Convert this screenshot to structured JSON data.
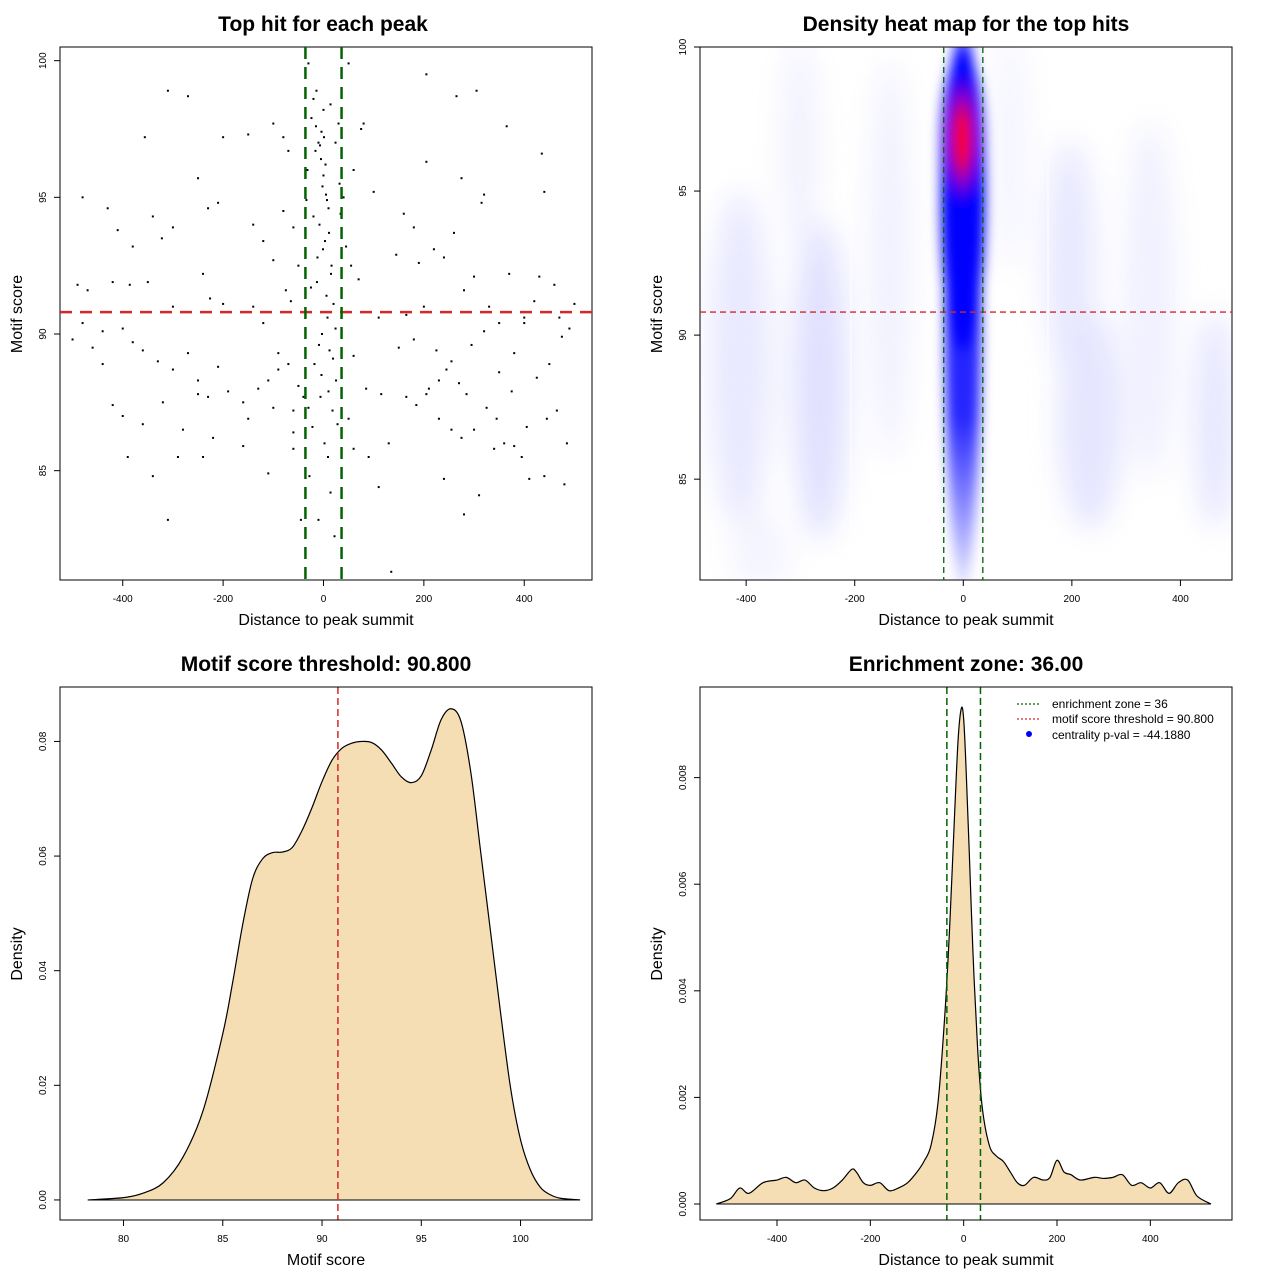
{
  "chart_data": [
    {
      "id": "scatter",
      "type": "scatter",
      "title": "Top hit for each peak",
      "xlabel": "Distance to peak summit",
      "ylabel": "Motif score",
      "xlim": [
        -525,
        535
      ],
      "ylim": [
        81,
        100.5
      ],
      "xticks": [
        -400,
        -200,
        0,
        200,
        400
      ],
      "yticks": [
        85,
        90,
        95,
        100
      ],
      "threshold_score": 90.8,
      "enrichment_zone": [
        -36,
        36
      ],
      "point_color": "#000000",
      "threshold_color": "#d62728",
      "zone_color": "#006400",
      "points": [
        [
          -310,
          98.9
        ],
        [
          -270,
          98.7
        ],
        [
          -356,
          97.2
        ],
        [
          -200,
          97.2
        ],
        [
          -150,
          97.3
        ],
        [
          -100,
          97.7
        ],
        [
          -80,
          97.2
        ],
        [
          -70,
          96.7
        ],
        [
          -480,
          95.0
        ],
        [
          -430,
          94.6
        ],
        [
          -410,
          93.8
        ],
        [
          -380,
          93.2
        ],
        [
          -340,
          94.3
        ],
        [
          -322,
          93.5
        ],
        [
          -300,
          93.9
        ],
        [
          -250,
          95.7
        ],
        [
          -230,
          94.6
        ],
        [
          -210,
          94.8
        ],
        [
          -120,
          93.4
        ],
        [
          -100,
          92.7
        ],
        [
          -80,
          94.5
        ],
        [
          -60,
          93.9
        ],
        [
          -50,
          92.5
        ],
        [
          -140,
          94.0
        ],
        [
          -490,
          91.8
        ],
        [
          -470,
          91.6
        ],
        [
          -420,
          91.9
        ],
        [
          -386,
          91.8
        ],
        [
          -350,
          91.9
        ],
        [
          -300,
          91.0
        ],
        [
          -240,
          92.2
        ],
        [
          -226,
          91.3
        ],
        [
          -200,
          91.1
        ],
        [
          -140,
          91.0
        ],
        [
          -120,
          90.4
        ],
        [
          -75,
          91.6
        ],
        [
          -65,
          91.2
        ],
        [
          -500,
          89.8
        ],
        [
          -460,
          89.5
        ],
        [
          -440,
          88.9
        ],
        [
          -400,
          90.2
        ],
        [
          -380,
          89.7
        ],
        [
          -360,
          89.4
        ],
        [
          -330,
          89.0
        ],
        [
          -300,
          88.7
        ],
        [
          -270,
          89.3
        ],
        [
          -250,
          88.3
        ],
        [
          -230,
          87.7
        ],
        [
          -210,
          88.8
        ],
        [
          -190,
          87.9
        ],
        [
          -160,
          87.5
        ],
        [
          -130,
          88.0
        ],
        [
          -110,
          88.3
        ],
        [
          -90,
          88.7
        ],
        [
          -70,
          88.9
        ],
        [
          -420,
          87.4
        ],
        [
          -400,
          87.0
        ],
        [
          -360,
          86.7
        ],
        [
          -320,
          87.5
        ],
        [
          -280,
          86.5
        ],
        [
          -250,
          87.8
        ],
        [
          -220,
          86.2
        ],
        [
          -150,
          86.9
        ],
        [
          -100,
          87.3
        ],
        [
          -60,
          86.4
        ],
        [
          -40,
          87.7
        ],
        [
          -390,
          85.5
        ],
        [
          -340,
          84.8
        ],
        [
          -290,
          85.5
        ],
        [
          -240,
          85.5
        ],
        [
          -160,
          85.9
        ],
        [
          -110,
          84.9
        ],
        [
          -60,
          85.8
        ],
        [
          -45,
          83.2
        ],
        [
          -310,
          83.2
        ],
        [
          -60,
          87.2
        ],
        [
          -50,
          88.1
        ],
        [
          -90,
          89.3
        ],
        [
          -480,
          90.4
        ],
        [
          -440,
          90.1
        ],
        [
          -30,
          99.9
        ],
        [
          -20,
          98.6
        ],
        [
          -15,
          97.6
        ],
        [
          -10,
          97.0
        ],
        [
          -5,
          96.4
        ],
        [
          0,
          95.8
        ],
        [
          5,
          95.1
        ],
        [
          10,
          94.6
        ],
        [
          -8,
          94.0
        ],
        [
          3,
          93.4
        ],
        [
          -12,
          92.8
        ],
        [
          15,
          92.2
        ],
        [
          -25,
          91.7
        ],
        [
          20,
          91.1
        ],
        [
          8,
          90.6
        ],
        [
          -3,
          90.0
        ],
        [
          12,
          89.4
        ],
        [
          -18,
          88.9
        ],
        [
          25,
          88.3
        ],
        [
          -6,
          87.7
        ],
        [
          18,
          87.2
        ],
        [
          -22,
          86.6
        ],
        [
          2,
          86.0
        ],
        [
          9,
          85.5
        ],
        [
          -28,
          84.8
        ],
        [
          14,
          84.2
        ],
        [
          -10,
          83.2
        ],
        [
          22,
          82.6
        ],
        [
          -16,
          96.7
        ],
        [
          4,
          96.2
        ],
        [
          -2,
          95.4
        ],
        [
          7,
          94.9
        ],
        [
          -20,
          94.3
        ],
        [
          11,
          93.7
        ],
        [
          -1,
          93.1
        ],
        [
          16,
          92.5
        ],
        [
          -13,
          91.9
        ],
        [
          6,
          91.4
        ],
        [
          -26,
          90.8
        ],
        [
          24,
          90.2
        ],
        [
          -9,
          89.6
        ],
        [
          19,
          89.1
        ],
        [
          -4,
          88.5
        ],
        [
          10,
          87.9
        ],
        [
          -30,
          87.3
        ],
        [
          28,
          86.7
        ],
        [
          0,
          98.2
        ],
        [
          -4,
          97.4
        ],
        [
          30,
          97.7
        ],
        [
          -32,
          96.0
        ],
        [
          32,
          95.5
        ],
        [
          -34,
          94.9
        ],
        [
          34,
          94.4
        ],
        [
          -14,
          98.9
        ],
        [
          14,
          98.4
        ],
        [
          -24,
          97.9
        ],
        [
          24,
          97.0
        ],
        [
          1,
          97.2
        ],
        [
          -7,
          96.9
        ],
        [
          50,
          99.9
        ],
        [
          80,
          97.7
        ],
        [
          75,
          97.5
        ],
        [
          100,
          95.2
        ],
        [
          60,
          96.0
        ],
        [
          40,
          95.0
        ],
        [
          45,
          93.2
        ],
        [
          55,
          92.5
        ],
        [
          70,
          92.0
        ],
        [
          110,
          90.6
        ],
        [
          160,
          94.4
        ],
        [
          180,
          93.9
        ],
        [
          190,
          92.6
        ],
        [
          200,
          91.0
        ],
        [
          220,
          93.1
        ],
        [
          240,
          92.8
        ],
        [
          260,
          93.7
        ],
        [
          280,
          91.6
        ],
        [
          300,
          92.1
        ],
        [
          320,
          95.1
        ],
        [
          330,
          91.0
        ],
        [
          350,
          90.4
        ],
        [
          370,
          92.2
        ],
        [
          400,
          90.4
        ],
        [
          420,
          91.2
        ],
        [
          430,
          92.1
        ],
        [
          440,
          95.2
        ],
        [
          460,
          91.8
        ],
        [
          470,
          90.6
        ],
        [
          490,
          90.2
        ],
        [
          205,
          99.5
        ],
        [
          265,
          98.7
        ],
        [
          305,
          98.9
        ],
        [
          365,
          97.6
        ],
        [
          435,
          96.6
        ],
        [
          205,
          96.3
        ],
        [
          275,
          95.7
        ],
        [
          315,
          94.8
        ],
        [
          145,
          92.9
        ],
        [
          165,
          90.7
        ],
        [
          225,
          89.4
        ],
        [
          245,
          88.7
        ],
        [
          285,
          87.8
        ],
        [
          325,
          87.3
        ],
        [
          345,
          86.9
        ],
        [
          375,
          87.9
        ],
        [
          405,
          86.6
        ],
        [
          425,
          88.4
        ],
        [
          445,
          86.9
        ],
        [
          465,
          87.2
        ],
        [
          485,
          86.0
        ],
        [
          165,
          87.7
        ],
        [
          185,
          87.4
        ],
        [
          205,
          87.8
        ],
        [
          230,
          86.9
        ],
        [
          255,
          86.5
        ],
        [
          275,
          86.2
        ],
        [
          300,
          86.5
        ],
        [
          340,
          85.8
        ],
        [
          380,
          85.9
        ],
        [
          410,
          84.7
        ],
        [
          440,
          84.8
        ],
        [
          480,
          84.5
        ],
        [
          130,
          86.0
        ],
        [
          110,
          84.4
        ],
        [
          90,
          85.5
        ],
        [
          60,
          85.8
        ],
        [
          50,
          86.9
        ],
        [
          135,
          81.3
        ],
        [
          280,
          83.4
        ],
        [
          310,
          84.1
        ],
        [
          360,
          86.0
        ],
        [
          395,
          85.5
        ],
        [
          240,
          84.7
        ],
        [
          60,
          89.2
        ],
        [
          85,
          88.0
        ],
        [
          115,
          87.8
        ],
        [
          150,
          89.5
        ],
        [
          180,
          89.8
        ],
        [
          210,
          88.0
        ],
        [
          230,
          88.3
        ],
        [
          255,
          89.0
        ],
        [
          270,
          88.2
        ],
        [
          295,
          89.6
        ],
        [
          320,
          90.1
        ],
        [
          350,
          88.6
        ],
        [
          380,
          89.3
        ],
        [
          400,
          90.6
        ],
        [
          450,
          88.9
        ],
        [
          475,
          89.9
        ],
        [
          500,
          91.1
        ]
      ]
    },
    {
      "id": "heatmap",
      "type": "heatmap",
      "title": "Density heat map for the top hits",
      "xlabel": "Distance to peak summit",
      "ylabel": "Motif score",
      "xlim": [
        -485,
        495
      ],
      "ylim": [
        81.5,
        100
      ],
      "xticks": [
        -400,
        -200,
        0,
        200,
        400
      ],
      "yticks": [
        85,
        90,
        95,
        100
      ],
      "threshold_score": 90.8,
      "enrichment_zone": [
        -36,
        36
      ],
      "colormap": [
        "#ffffff",
        "#0000ff",
        "#ff0000"
      ],
      "hotspot": {
        "x": -2,
        "y": 96.8
      },
      "threshold_color": "#d62728",
      "zone_color": "#006400"
    },
    {
      "id": "score-density",
      "type": "area",
      "title": "Motif score threshold: 90.800",
      "xlabel": "Motif score",
      "ylabel": "Density",
      "xlim": [
        76.8,
        103.6
      ],
      "ylim": [
        -0.0035,
        0.0895
      ],
      "xticks": [
        80,
        85,
        90,
        95,
        100
      ],
      "yticks": [
        0.0,
        0.02,
        0.04,
        0.06,
        0.08
      ],
      "ytick_labels": [
        "0.00",
        "0.02",
        "0.04",
        "0.06",
        "0.08"
      ],
      "fill_color": "#f5deb3",
      "threshold_score": 90.8,
      "threshold_color": "#d62728",
      "x": [
        78.2,
        80,
        81,
        82,
        83,
        84,
        85,
        85.5,
        86,
        86.5,
        87,
        87.5,
        88,
        88.5,
        89,
        89.5,
        90,
        90.5,
        91,
        91.5,
        92,
        92.5,
        93,
        93.5,
        94,
        94.5,
        95,
        95.5,
        96,
        96.5,
        97,
        97.5,
        98,
        98.5,
        99,
        99.5,
        100,
        100.5,
        101,
        101.5,
        102,
        103
      ],
      "y": [
        0.0,
        0.0004,
        0.0012,
        0.003,
        0.0075,
        0.0155,
        0.029,
        0.038,
        0.048,
        0.056,
        0.0595,
        0.0606,
        0.0607,
        0.0615,
        0.0645,
        0.0685,
        0.073,
        0.0767,
        0.0788,
        0.0797,
        0.08,
        0.0798,
        0.0785,
        0.0762,
        0.0738,
        0.0728,
        0.074,
        0.0785,
        0.0838,
        0.0857,
        0.0835,
        0.0745,
        0.0605,
        0.0465,
        0.0325,
        0.0195,
        0.0105,
        0.0052,
        0.0022,
        0.0009,
        0.0003,
        0.0
      ]
    },
    {
      "id": "distance-density",
      "type": "area",
      "title": "Enrichment zone: 36.00",
      "xlabel": "Distance to peak summit",
      "ylabel": "Density",
      "xlim": [
        -565,
        575
      ],
      "ylim": [
        -0.0003,
        0.0097
      ],
      "xticks": [
        -400,
        -200,
        0,
        200,
        400
      ],
      "yticks": [
        0.0,
        0.002,
        0.004,
        0.006,
        0.008
      ],
      "ytick_labels": [
        "0.000",
        "0.002",
        "0.004",
        "0.006",
        "0.008"
      ],
      "fill_color": "#f5deb3",
      "enrichment_zone": [
        -36,
        36
      ],
      "zone_color": "#006400",
      "legend": {
        "position": "top-right",
        "items": [
          {
            "label": "enrichment zone = 36",
            "style": "dotted",
            "color": "#006400"
          },
          {
            "label": "motif score threshold = 90.800",
            "style": "dotted",
            "color": "#d62728"
          },
          {
            "label": "centrality p-val = -44.1880",
            "style": "point",
            "color": "#0000ff"
          }
        ]
      },
      "x": [
        -530,
        -500,
        -480,
        -460,
        -430,
        -400,
        -380,
        -360,
        -340,
        -320,
        -300,
        -280,
        -260,
        -240,
        -230,
        -215,
        -200,
        -180,
        -160,
        -140,
        -120,
        -100,
        -85,
        -70,
        -55,
        -40,
        -30,
        -20,
        -12,
        -5,
        0,
        5,
        12,
        20,
        30,
        40,
        55,
        70,
        85,
        100,
        115,
        130,
        150,
        170,
        185,
        200,
        215,
        230,
        250,
        280,
        300,
        320,
        340,
        360,
        380,
        400,
        420,
        440,
        460,
        480,
        500,
        530
      ],
      "y": [
        0.0,
        0.0001,
        0.0003,
        0.0002,
        0.0004,
        0.00045,
        0.0005,
        0.0004,
        0.00045,
        0.0003,
        0.00025,
        0.0003,
        0.00045,
        0.00065,
        0.0006,
        0.0004,
        0.00035,
        0.0004,
        0.00025,
        0.0003,
        0.0004,
        0.0006,
        0.0008,
        0.0011,
        0.0019,
        0.0036,
        0.0052,
        0.0072,
        0.0087,
        0.0093,
        0.0091,
        0.0082,
        0.0066,
        0.0047,
        0.0029,
        0.0018,
        0.0011,
        0.0009,
        0.0008,
        0.0006,
        0.0004,
        0.00035,
        0.0005,
        0.00045,
        0.0005,
        0.00082,
        0.0006,
        0.00055,
        0.00045,
        0.0005,
        0.00048,
        0.0005,
        0.00055,
        0.00035,
        0.0004,
        0.0003,
        0.0004,
        0.0002,
        0.0004,
        0.00045,
        0.00015,
        0.0
      ]
    }
  ]
}
